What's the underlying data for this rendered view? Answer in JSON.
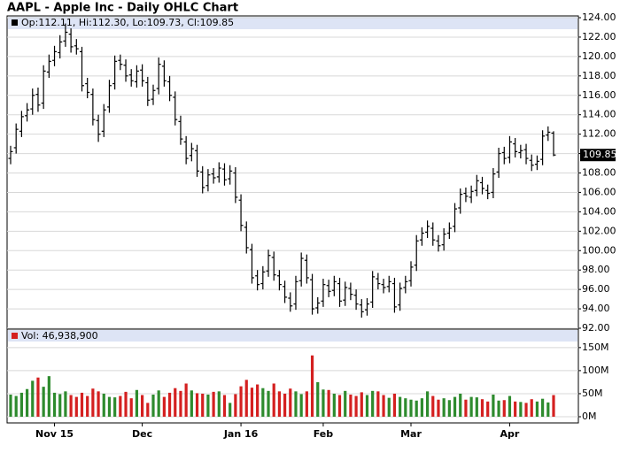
{
  "chart_data": [
    {
      "type": "ohlc",
      "title": "AAPL - Apple Inc - Daily OHLC Chart",
      "subtitle": "Op:112.11, Hi:112.30, Lo:109.73, Cl:109.85",
      "color": "#000000",
      "grid": true,
      "ylim": [
        92,
        124
      ],
      "yticks": [
        {
          "value": 92,
          "label": "92.00"
        },
        {
          "value": 94,
          "label": "94.00"
        },
        {
          "value": 96,
          "label": "96.00"
        },
        {
          "value": 98,
          "label": "98.00"
        },
        {
          "value": 100,
          "label": "100.00"
        },
        {
          "value": 102,
          "label": "102.00"
        },
        {
          "value": 104,
          "label": "104.00"
        },
        {
          "value": 106,
          "label": "106.00"
        },
        {
          "value": 108,
          "label": "108.00"
        },
        {
          "value": 110,
          "label": "110.00"
        },
        {
          "value": 112,
          "label": "112.00"
        },
        {
          "value": 114,
          "label": "114.00"
        },
        {
          "value": 116,
          "label": "116.00"
        },
        {
          "value": 118,
          "label": "118.00"
        },
        {
          "value": 120,
          "label": "120.00"
        },
        {
          "value": 122,
          "label": "122.00"
        },
        {
          "value": 124,
          "label": "124.00"
        }
      ],
      "open": [
        109.5,
        110.6,
        112.3,
        113.9,
        114.6,
        116.1,
        115.2,
        118.4,
        119.6,
        120.4,
        121.6,
        122.3,
        121.1,
        120.5,
        117.2,
        116.1,
        113.4,
        112.3,
        114.8,
        117.2,
        119.6,
        119.1,
        118.1,
        117.4,
        118.6,
        117.3,
        115.6,
        116.7,
        119,
        117.4,
        115.8,
        113.3,
        111.2,
        109.8,
        110.3,
        108.1,
        106.7,
        107.9,
        107.6,
        108.4,
        107.4,
        108,
        105.2,
        102.4,
        100.1,
        97.4,
        96.6,
        97.9,
        99.3,
        97.4,
        96.3,
        95.1,
        94.5,
        96.9,
        99,
        97,
        94.1,
        94.8,
        96.4,
        95.9,
        96.6,
        94.9,
        96.1,
        95.4,
        94.4,
        93.9,
        94.7,
        97.1,
        96.5,
        96.3,
        96.6,
        94.4,
        96.2,
        96.9,
        98.5,
        101.1,
        101.9,
        102.3,
        101,
        100.6,
        101.8,
        102.5,
        104.4,
        105.9,
        105.5,
        106.2,
        107,
        106.2,
        106,
        108.1,
        110.1,
        109.6,
        111,
        110.1,
        110.4,
        109.3,
        108.9,
        109.4,
        111.9,
        112.11
      ],
      "high": [
        110.8,
        113.1,
        114.4,
        115.2,
        116.7,
        116.8,
        119.1,
        120.2,
        121.1,
        122.2,
        123.4,
        122.9,
        121.8,
        121,
        117.8,
        116.7,
        114,
        115.1,
        117.6,
        120.1,
        120.2,
        119.7,
        118.7,
        119.1,
        119.2,
        117.9,
        117.1,
        119.9,
        119.6,
        118,
        116.4,
        113.9,
        111.8,
        111.1,
        110.9,
        108.7,
        108.4,
        108.5,
        109.1,
        109,
        108.8,
        108.6,
        105.8,
        103,
        100.7,
        98,
        98.4,
        100.1,
        99.9,
        98,
        96.9,
        95.7,
        97.4,
        99.8,
        99.6,
        97.6,
        95.2,
        97.1,
        97,
        97.4,
        97.2,
        96.8,
        96.7,
        96,
        95,
        95.1,
        97.9,
        97.7,
        97.1,
        97.4,
        97.2,
        96.7,
        97.4,
        98.9,
        101.6,
        102.4,
        103.1,
        102.9,
        101.6,
        102.3,
        102.9,
        104.9,
        106.4,
        106.5,
        106.7,
        107.8,
        107.6,
        106.8,
        108.5,
        110.6,
        110.7,
        111.8,
        111.6,
        110.9,
        111,
        109.9,
        109.8,
        112.4,
        112.8,
        112.3
      ],
      "low": [
        108.9,
        110,
        111.7,
        113.3,
        114,
        114.3,
        114.6,
        117.8,
        119,
        119.8,
        121,
        120.4,
        120.2,
        116.4,
        115.7,
        112.9,
        111.2,
        111.7,
        114.2,
        116.6,
        118.6,
        117.4,
        116.9,
        116.8,
        116.9,
        114.9,
        115,
        116.1,
        116.9,
        115.4,
        112.9,
        110.9,
        108.9,
        109.2,
        107.6,
        105.9,
        106.1,
        106.9,
        107,
        106.7,
        106.8,
        104.9,
        102,
        99.7,
        96.6,
        95.9,
        96,
        97.3,
        96.9,
        95.9,
        94.6,
        93.7,
        93.9,
        96.3,
        96.6,
        93.4,
        93.5,
        94.2,
        95.2,
        95.3,
        94.2,
        94.3,
        94.9,
        93.9,
        93.1,
        93.3,
        94.1,
        96,
        95.6,
        95.7,
        93.6,
        93.8,
        95.6,
        96.3,
        97.9,
        100.5,
        101.3,
        100.5,
        99.9,
        100,
        101.2,
        101.9,
        103.8,
        105,
        104.9,
        105.6,
        105.8,
        105.3,
        105.4,
        107.5,
        108.9,
        109,
        109.6,
        109.5,
        108.9,
        108.2,
        108.3,
        108.8,
        111.3,
        109.73
      ],
      "close": [
        110.2,
        112.5,
        113.8,
        114.5,
        116,
        115,
        118.5,
        119.5,
        120.5,
        121.5,
        122.5,
        121,
        120.8,
        117,
        116.3,
        113.5,
        112,
        114.5,
        117,
        119.5,
        119.2,
        118,
        117.5,
        118.5,
        117.5,
        115.5,
        116.5,
        119.2,
        117.5,
        116,
        113.5,
        111.5,
        109.5,
        110.5,
        108.2,
        106.5,
        107.8,
        107.5,
        108.5,
        107.3,
        108.2,
        105.5,
        102.6,
        100.3,
        97.2,
        96.5,
        97.8,
        99.5,
        97.5,
        96.5,
        95.2,
        94.3,
        96.8,
        99.2,
        97.2,
        94,
        94.6,
        96.5,
        95.8,
        96.8,
        94.8,
        96.2,
        95.5,
        94.5,
        93.7,
        94.5,
        97.3,
        96.6,
        96.2,
        96.8,
        94.2,
        96.1,
        96.8,
        98.3,
        101,
        101.8,
        102.5,
        101.1,
        100.5,
        101.7,
        102.3,
        104.3,
        105.8,
        105.6,
        106.1,
        107.2,
        106.4,
        105.9,
        107.9,
        110,
        109.5,
        111.2,
        110.2,
        110.3,
        109.5,
        108.8,
        109.2,
        111.8,
        112.2,
        109.85
      ]
    },
    {
      "type": "bar",
      "title": "Vol: 46,938,900",
      "up_color": "#2e8b2e",
      "down_color": "#d42020",
      "grid": true,
      "ylim": [
        0,
        190000000
      ],
      "yticks": [
        {
          "value": 0,
          "label": "0M"
        },
        {
          "value": 50000000,
          "label": "50M"
        },
        {
          "value": 100000000,
          "label": "100M"
        },
        {
          "value": 150000000,
          "label": "150M"
        }
      ],
      "categories": [
        null,
        null,
        null,
        null,
        null,
        null,
        null,
        null,
        "Nov 15",
        null,
        null,
        null,
        null,
        null,
        null,
        null,
        null,
        null,
        null,
        null,
        null,
        null,
        null,
        null,
        "Dec",
        null,
        null,
        null,
        null,
        null,
        null,
        null,
        null,
        null,
        null,
        null,
        null,
        null,
        null,
        null,
        null,
        null,
        "Jan 16",
        null,
        null,
        null,
        null,
        null,
        null,
        null,
        null,
        null,
        null,
        null,
        null,
        null,
        null,
        "Feb",
        null,
        null,
        null,
        null,
        null,
        null,
        null,
        null,
        null,
        null,
        null,
        null,
        null,
        null,
        null,
        "Mar",
        null,
        null,
        null,
        null,
        null,
        null,
        null,
        null,
        null,
        null,
        null,
        null,
        null,
        null,
        null,
        null,
        null,
        "Apr",
        null,
        null,
        null,
        null,
        null,
        null,
        null,
        null
      ],
      "values": [
        48000000,
        45000000,
        52000000,
        60000000,
        78000000,
        85000000,
        65000000,
        88000000,
        52000000,
        49000000,
        55000000,
        47000000,
        43000000,
        52000000,
        45000000,
        61000000,
        55000000,
        50000000,
        43000000,
        42000000,
        45000000,
        54000000,
        40000000,
        58000000,
        47000000,
        30000000,
        48000000,
        57000000,
        43000000,
        52000000,
        62000000,
        56000000,
        72000000,
        57000000,
        51000000,
        50000000,
        48000000,
        54000000,
        55000000,
        47000000,
        30000000,
        49000000,
        66000000,
        80000000,
        63000000,
        70000000,
        62000000,
        56000000,
        72000000,
        55000000,
        50000000,
        61000000,
        55000000,
        49000000,
        55000000,
        133000000,
        75000000,
        59000000,
        58000000,
        50000000,
        47000000,
        56000000,
        48000000,
        45000000,
        53000000,
        47000000,
        56000000,
        55000000,
        47000000,
        41000000,
        50000000,
        43000000,
        40000000,
        37000000,
        35000000,
        40000000,
        55000000,
        45000000,
        37000000,
        40000000,
        36000000,
        43000000,
        50000000,
        37000000,
        43000000,
        42000000,
        38000000,
        33000000,
        48000000,
        35000000,
        36000000,
        45000000,
        33000000,
        32000000,
        30000000,
        38000000,
        33000000,
        39000000,
        31000000,
        46938900
      ]
    }
  ]
}
